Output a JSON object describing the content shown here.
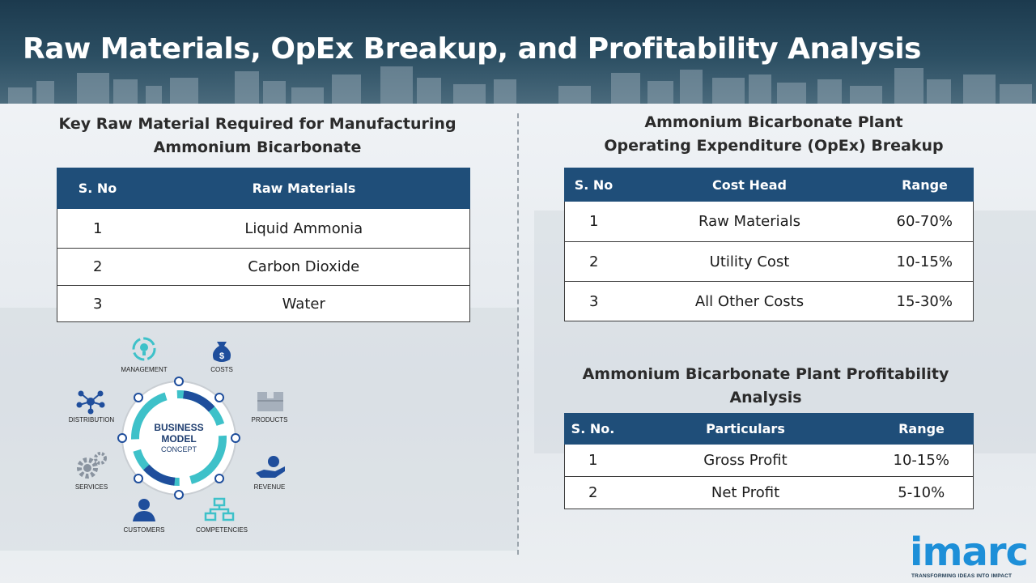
{
  "header": {
    "title": "Raw Materials, OpEx Breakup, and Profitability Analysis"
  },
  "raw_materials": {
    "title_line1": "Key Raw Material Required for Manufacturing",
    "title_line2": "Ammonium Bicarbonate",
    "columns": [
      "S. No",
      "Raw Materials"
    ],
    "rows": [
      [
        "1",
        "Liquid Ammonia"
      ],
      [
        "2",
        "Carbon Dioxide"
      ],
      [
        "3",
        "Water"
      ]
    ]
  },
  "opex": {
    "title_line1": "Ammonium Bicarbonate Plant",
    "title_line2": "Operating Expenditure (OpEx) Breakup",
    "columns": [
      "S. No",
      "Cost Head",
      "Range"
    ],
    "rows": [
      [
        "1",
        "Raw Materials",
        "60-70%"
      ],
      [
        "2",
        "Utility Cost",
        "10-15%"
      ],
      [
        "3",
        "All Other Costs",
        "15-30%"
      ]
    ]
  },
  "profitability": {
    "title_line1": "Ammonium Bicarbonate Plant Profitability",
    "title_line2": "Analysis",
    "columns": [
      "S. No.",
      "Particulars",
      "Range"
    ],
    "rows": [
      [
        "1",
        "Gross Profit",
        "10-15%"
      ],
      [
        "2",
        "Net Profit",
        "5-10%"
      ]
    ]
  },
  "diagram": {
    "center_line1": "BUSINESS",
    "center_line2": "MODEL",
    "center_line3": "CONCEPT",
    "labels": {
      "management": "MANAGEMENT",
      "costs": "COSTS",
      "products": "PRODUCTS",
      "revenue": "REVENUE",
      "competencies": "COMPETENCIES",
      "customers": "CUSTOMERS",
      "services": "SERVICES",
      "distribution": "DISTRIBUTION"
    }
  },
  "logo": {
    "name": "imarc",
    "tagline": "TRANSFORMING IDEAS INTO IMPACT"
  },
  "colors": {
    "header_bg": "#1c3a4e",
    "table_header": "#1f4e79",
    "logo_blue": "#1d8fd8",
    "teal": "#3ec1c9"
  }
}
